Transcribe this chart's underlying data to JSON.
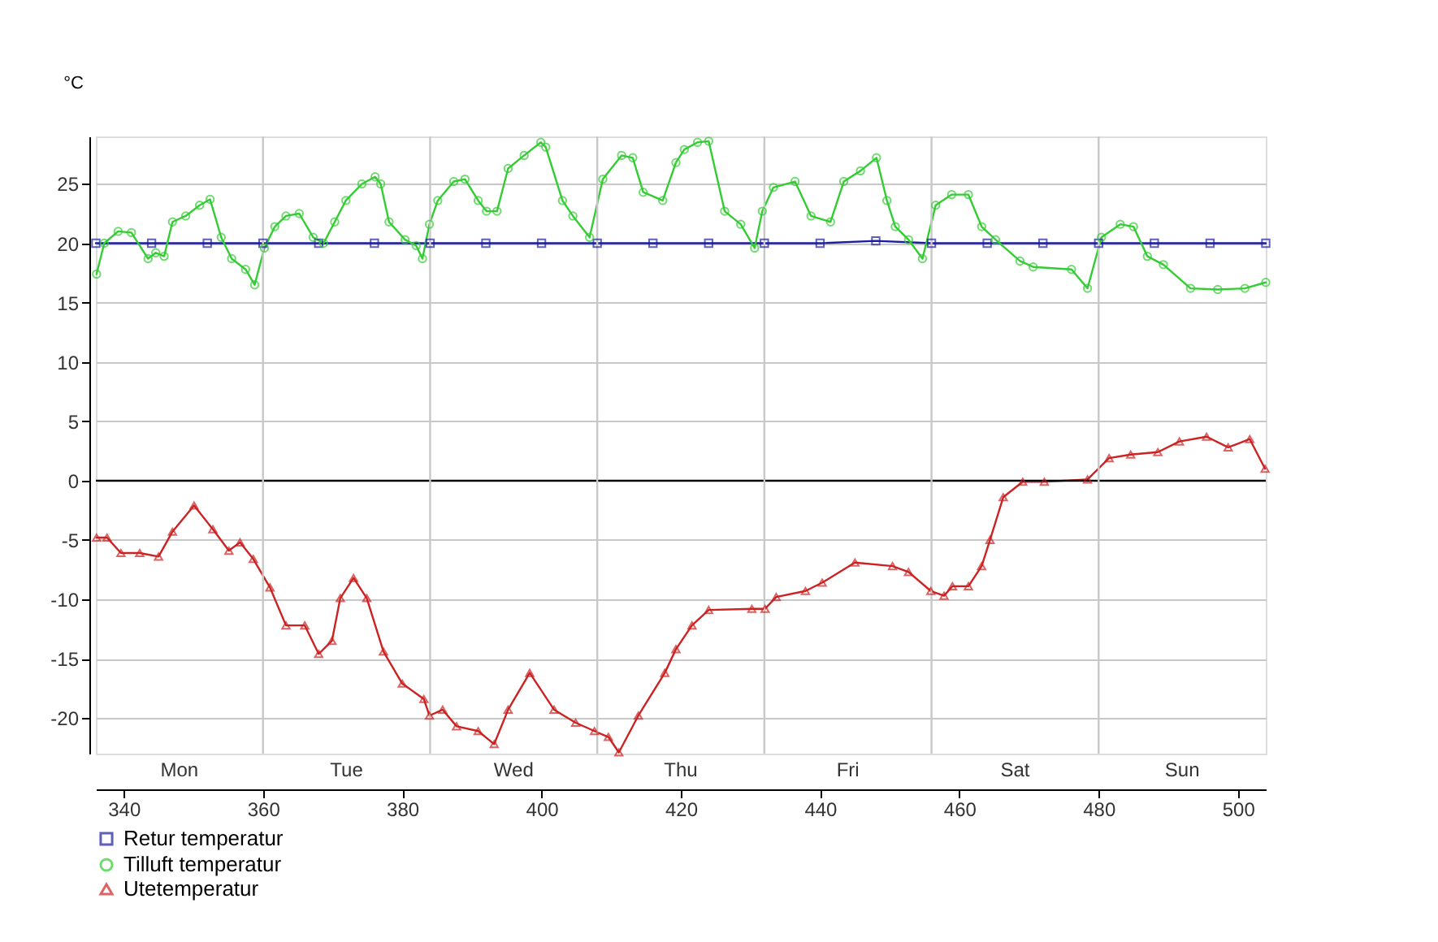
{
  "chart_data": {
    "type": "line",
    "ylabel": "°C",
    "xlim": [
      336,
      504
    ],
    "xticks": [
      340,
      360,
      380,
      400,
      420,
      440,
      460,
      480,
      500
    ],
    "annotations": [
      "Mon",
      "Tue",
      "Wed",
      "Thu",
      "Fri",
      "Sat",
      "Sun"
    ],
    "ylim": [
      -23,
      29
    ],
    "yticks": [
      -20,
      -15,
      -10,
      -5,
      0,
      5,
      10,
      15,
      20,
      25
    ],
    "grid": "y",
    "legend": "bottom",
    "ref_lines": [
      {
        "axis": "y",
        "value": 0,
        "label": null,
        "color": "#000000"
      },
      {
        "axis": "x",
        "value": 360,
        "label": null,
        "color": "#c8c8c8"
      },
      {
        "axis": "x",
        "value": 384,
        "label": null,
        "color": "#c8c8c8"
      },
      {
        "axis": "x",
        "value": 408,
        "label": null,
        "color": "#c8c8c8"
      },
      {
        "axis": "x",
        "value": 432,
        "label": null,
        "color": "#c8c8c8"
      },
      {
        "axis": "x",
        "value": 456,
        "label": null,
        "color": "#c8c8c8"
      },
      {
        "axis": "x",
        "value": 480,
        "label": null,
        "color": "#c8c8c8"
      }
    ],
    "series": [
      {
        "name": "Retur temperatur",
        "color": "#1c1c9c",
        "marker": "square",
        "x": [
          336,
          344,
          352,
          360,
          368,
          376,
          384,
          392,
          400,
          408,
          416,
          424,
          432,
          440,
          448,
          456,
          464,
          472,
          480,
          488,
          496,
          504
        ],
        "values": [
          20,
          20,
          20,
          20,
          20,
          20,
          20,
          20,
          20,
          20,
          20,
          20,
          20,
          20,
          20.2,
          20,
          20,
          20,
          20,
          20,
          20,
          20
        ]
      },
      {
        "name": "Tilluft temperatur",
        "color": "#33cc33",
        "marker": "circle",
        "x": [
          336.1,
          337.2,
          339.2,
          341.1,
          343.5,
          344.6,
          345.8,
          347.0,
          348.9,
          350.9,
          352.4,
          354.0,
          355.5,
          357.5,
          358.8,
          360.2,
          361.7,
          363.3,
          365.2,
          367.2,
          368.7,
          370.3,
          371.9,
          374.2,
          376.1,
          376.9,
          378.1,
          380.4,
          382.0,
          382.9,
          383.9,
          385.1,
          387.4,
          389.0,
          390.9,
          392.1,
          393.6,
          395.2,
          397.5,
          399.9,
          400.6,
          403.0,
          404.5,
          406.9,
          408.8,
          411.5,
          413.1,
          414.6,
          417.4,
          419.3,
          420.5,
          422.4,
          424.0,
          426.3,
          428.6,
          430.6,
          431.7,
          433.3,
          436.4,
          438.7,
          441.5,
          443.4,
          445.8,
          448.1,
          449.6,
          450.8,
          452.7,
          454.7,
          456.6,
          458.9,
          461.3,
          463.2,
          465.2,
          468.7,
          470.6,
          476.1,
          478.4,
          480.4,
          483.1,
          485.0,
          487.0,
          489.3,
          493.2,
          497.1,
          501.0,
          504.0
        ],
        "values": [
          17.4,
          20.0,
          21.0,
          20.9,
          18.7,
          19.2,
          18.9,
          21.8,
          22.3,
          23.2,
          23.7,
          20.5,
          18.7,
          17.8,
          16.5,
          19.6,
          21.4,
          22.3,
          22.5,
          20.5,
          20.0,
          21.8,
          23.6,
          25.0,
          25.6,
          25.0,
          21.8,
          20.3,
          19.8,
          18.7,
          21.6,
          23.6,
          25.2,
          25.4,
          23.6,
          22.7,
          22.7,
          26.3,
          27.4,
          28.5,
          28.1,
          23.6,
          22.3,
          20.5,
          25.4,
          27.4,
          27.2,
          24.3,
          23.6,
          26.8,
          27.9,
          28.5,
          28.6,
          22.7,
          21.6,
          19.6,
          22.7,
          24.7,
          25.2,
          22.3,
          21.8,
          25.2,
          26.1,
          27.2,
          23.6,
          21.4,
          20.3,
          18.7,
          23.2,
          24.1,
          24.1,
          21.4,
          20.3,
          18.5,
          18.0,
          17.8,
          16.2,
          20.5,
          21.6,
          21.4,
          18.9,
          18.2,
          16.2,
          16.1,
          16.2,
          16.7
        ]
      },
      {
        "name": "Utetemperatur",
        "color": "#cc2222",
        "marker": "triangle",
        "x": [
          336.1,
          337.6,
          339.6,
          342.3,
          345.0,
          347.0,
          350.1,
          352.8,
          355.1,
          356.7,
          358.6,
          361.0,
          363.3,
          366.0,
          368.0,
          369.9,
          371.1,
          373.0,
          374.9,
          377.3,
          380.0,
          383.1,
          383.9,
          385.8,
          387.8,
          390.9,
          393.2,
          395.2,
          398.3,
          401.8,
          404.9,
          407.6,
          409.6,
          411.1,
          413.9,
          417.7,
          419.3,
          421.6,
          424.0,
          430.2,
          432.1,
          433.7,
          437.9,
          440.3,
          445.0,
          450.4,
          452.7,
          455.9,
          457.8,
          459.0,
          461.3,
          463.2,
          464.4,
          466.3,
          469.1,
          472.2,
          478.4,
          481.5,
          484.6,
          488.5,
          491.6,
          495.5,
          498.6,
          501.7,
          503.9
        ],
        "values": [
          -4.8,
          -4.8,
          -6.1,
          -6.1,
          -6.4,
          -4.3,
          -2.1,
          -4.1,
          -5.9,
          -5.2,
          -6.6,
          -9.0,
          -12.2,
          -12.2,
          -14.6,
          -13.5,
          -9.9,
          -8.2,
          -9.9,
          -14.4,
          -17.1,
          -18.4,
          -19.8,
          -19.3,
          -20.7,
          -21.1,
          -22.2,
          -19.3,
          -16.2,
          -19.3,
          -20.4,
          -21.1,
          -21.6,
          -22.9,
          -19.8,
          -16.2,
          -14.2,
          -12.2,
          -10.9,
          -10.8,
          -10.8,
          -9.8,
          -9.3,
          -8.6,
          -6.9,
          -7.2,
          -7.7,
          -9.3,
          -9.7,
          -8.9,
          -8.9,
          -7.2,
          -5.0,
          -1.4,
          -0.1,
          -0.1,
          0.1,
          1.9,
          2.2,
          2.4,
          3.3,
          3.7,
          2.8,
          3.5,
          1.0
        ]
      }
    ]
  }
}
